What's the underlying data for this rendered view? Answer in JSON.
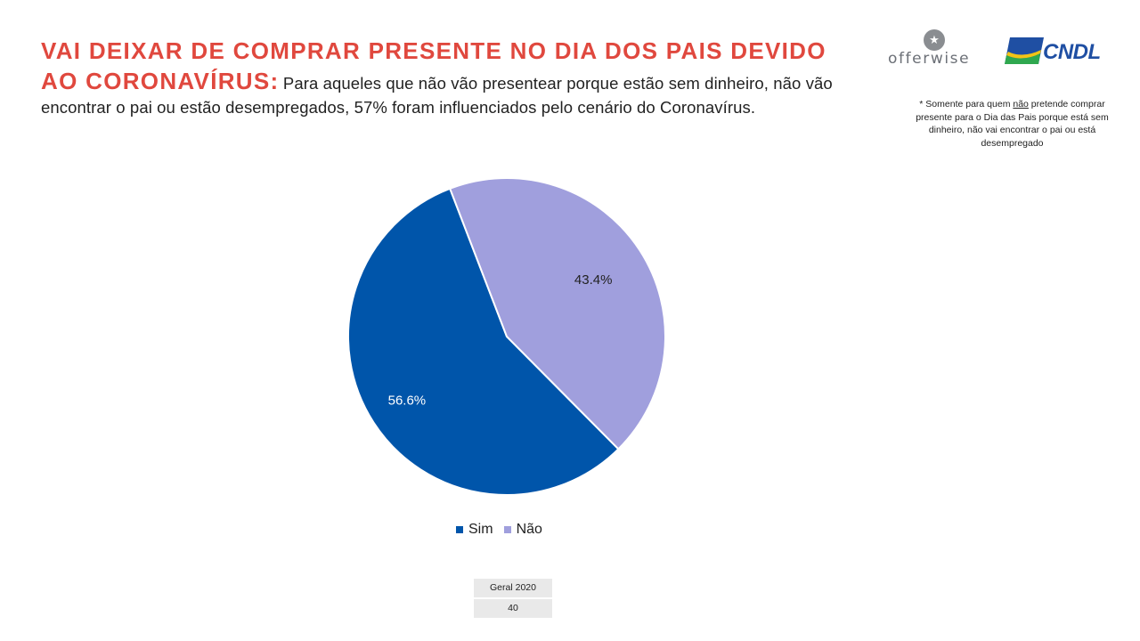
{
  "headline": {
    "title": "VAI DEIXAR DE COMPRAR PRESENTE NO DIA DOS PAIS DEVIDO AO CORONAVÍRUS:",
    "body": "Para aqueles que não vão presentear porque estão sem dinheiro, não vão encontrar o pai ou estão desempregados, 57% foram influenciados pelo cenário do Coronavírus."
  },
  "logos": {
    "offerwise": "offerwise",
    "cndl": "CNDL"
  },
  "footnote": {
    "part1": "* Somente para quem ",
    "underlined": "não",
    "part2": " pretende comprar presente para o Dia das Pais porque está sem dinheiro, não vai encontrar o pai ou está desempregado"
  },
  "chart_data": {
    "type": "pie",
    "title": "",
    "categories": [
      "Sim",
      "Não"
    ],
    "values": [
      56.6,
      43.4
    ],
    "labels": [
      "56.6%",
      "43.4%"
    ],
    "colors": [
      "#0055aa",
      "#a09fdd"
    ],
    "legend_position": "bottom",
    "start_angle_deg": -21,
    "direction": "counterclockwise"
  },
  "base_table": {
    "label": "Geral 2020",
    "value": "40"
  }
}
